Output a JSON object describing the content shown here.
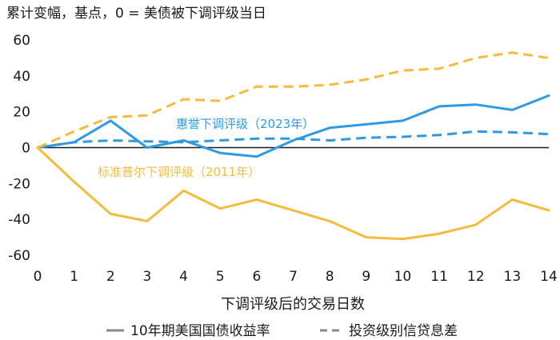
{
  "chart_data": {
    "type": "line",
    "title": "累计变幅，基点，0 = 美债被下调评级当日",
    "xlabel": "下调评级后的交易日数",
    "ylabel": "",
    "x": [
      0,
      1,
      2,
      3,
      4,
      5,
      6,
      7,
      8,
      9,
      10,
      11,
      12,
      13,
      14
    ],
    "xlim": [
      0,
      14
    ],
    "ylim": [
      -60,
      60
    ],
    "yticks": [
      60,
      40,
      20,
      0,
      -20,
      -40,
      -60
    ],
    "yticks_labels": [
      "60",
      "40",
      "20",
      "0",
      "-20",
      "-40",
      "-60"
    ],
    "series": [
      {
        "name": "惠誉下调评级（2023年）",
        "measure": "10年期美国国债收益率",
        "color": "#2f9ae3",
        "dash": "solid",
        "values": [
          0,
          3,
          15,
          0,
          4,
          -3,
          -5,
          4,
          11,
          13,
          15,
          23,
          24,
          21,
          29
        ]
      },
      {
        "name": "惠誉下调评级（2023年）",
        "measure": "投资级别信贷息差",
        "color": "#2f9ae3",
        "dash": "dashed",
        "values": [
          0,
          3,
          4,
          3.5,
          3,
          4,
          5,
          5,
          4,
          5.5,
          6,
          7,
          9,
          8.5,
          7.5
        ]
      },
      {
        "name": "标准普尔下调评级（2011年）",
        "measure": "10年期美国国债收益率",
        "color": "#f3bc3c",
        "dash": "solid",
        "values": [
          0,
          -19,
          -37,
          -41,
          -24,
          -34,
          -29,
          -35,
          -41,
          -50,
          -51,
          -48,
          -43,
          -29,
          -35
        ]
      },
      {
        "name": "标准普尔下调评级（2011年）",
        "measure": "投资级别信贷息差",
        "color": "#f3bc3c",
        "dash": "dashed",
        "values": [
          0,
          9,
          17,
          18,
          27,
          26,
          34,
          34,
          35,
          38,
          43,
          44,
          50,
          53,
          50
        ]
      }
    ],
    "annotations": [
      {
        "text": "惠誉下调评级（2023年）",
        "color": "#2f9ae3"
      },
      {
        "text": "标准普尔下调评级（2011年）",
        "color": "#f3bc3c"
      }
    ],
    "legend": {
      "placement": "bottom",
      "entries": [
        {
          "label": "10年期美国国债收益率",
          "style": "solid"
        },
        {
          "label": "投资级别信贷息差",
          "style": "dashed"
        }
      ]
    }
  },
  "colors": {
    "blue": "#2f9ae3",
    "yellow": "#f3bc3c",
    "axis": "#1a1a1a",
    "legend_swatch": "#8a8a8a"
  }
}
